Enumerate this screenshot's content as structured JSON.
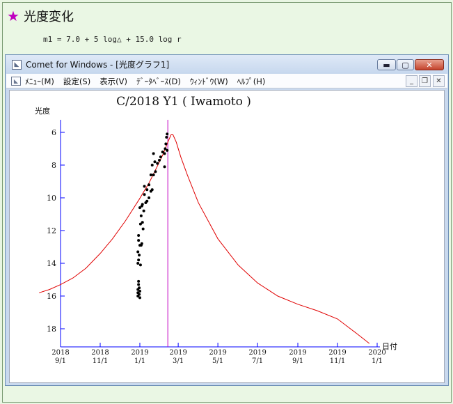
{
  "page": {
    "heading": "光度変化",
    "formula": "m1 = 7.0 + 5 log△ + 15.0 log r"
  },
  "window": {
    "title": "Comet for Windows - [光度グラフ1]",
    "menu": [
      "ﾒﾆｭｰ(M)",
      "設定(S)",
      "表示(V)",
      "ﾃﾞｰﾀﾍﾞｰｽ(D)",
      "ｳｨﾝﾄﾞｳ(W)",
      "ﾍﾙﾌﾟ(H)"
    ]
  },
  "colors": {
    "star": "#c000c0",
    "axis": "#0000ff",
    "curve": "#e00000",
    "marker": "#c000c0",
    "points": "#000000"
  },
  "icons": [
    "star-icon",
    "app-icon",
    "menu-doc-icon",
    "minimize-icon",
    "maximize-icon",
    "close-icon"
  ],
  "chart_data": {
    "type": "scatter",
    "title": "C/2018 Y1 ( Iwamoto )",
    "ylabel": "光度",
    "xlabel": "日付",
    "y_inverted": true,
    "ylim": [
      5.2,
      19
    ],
    "yticks": [
      6,
      8,
      10,
      12,
      14,
      16,
      18
    ],
    "x_ticks": [
      {
        "date": "2018-09-01",
        "top": "2018",
        "bottom": "9/1"
      },
      {
        "date": "2018-11-01",
        "top": "2018",
        "bottom": "11/1"
      },
      {
        "date": "2019-01-01",
        "top": "2019",
        "bottom": "1/1"
      },
      {
        "date": "2019-03-01",
        "top": "2019",
        "bottom": "3/1"
      },
      {
        "date": "2019-05-01",
        "top": "2019",
        "bottom": "5/1"
      },
      {
        "date": "2019-07-01",
        "top": "2019",
        "bottom": "7/1"
      },
      {
        "date": "2019-09-01",
        "top": "2019",
        "bottom": "9/1"
      },
      {
        "date": "2019-11-01",
        "top": "2019",
        "bottom": "11/1"
      },
      {
        "date": "2020-01-01",
        "top": "2020",
        "bottom": "1/1"
      }
    ],
    "marker_date": "2019-02-13",
    "series": [
      {
        "kind": "curve",
        "points": [
          [
            "2018-07-30",
            15.8
          ],
          [
            "2018-08-15",
            15.6
          ],
          [
            "2018-09-01",
            15.3
          ],
          [
            "2018-09-20",
            14.9
          ],
          [
            "2018-10-10",
            14.3
          ],
          [
            "2018-11-01",
            13.4
          ],
          [
            "2018-11-20",
            12.5
          ],
          [
            "2018-12-10",
            11.4
          ],
          [
            "2018-12-31",
            10.1
          ],
          [
            "2019-01-15",
            9.1
          ],
          [
            "2019-01-25",
            8.3
          ],
          [
            "2019-02-05",
            7.4
          ],
          [
            "2019-02-13",
            6.6
          ],
          [
            "2019-02-18",
            6.15
          ],
          [
            "2019-02-21",
            6.15
          ],
          [
            "2019-02-26",
            6.6
          ],
          [
            "2019-03-05",
            7.5
          ],
          [
            "2019-03-15",
            8.6
          ],
          [
            "2019-04-01",
            10.3
          ],
          [
            "2019-05-01",
            12.5
          ],
          [
            "2019-06-01",
            14.1
          ],
          [
            "2019-07-01",
            15.2
          ],
          [
            "2019-08-01",
            16.0
          ],
          [
            "2019-09-01",
            16.5
          ],
          [
            "2019-10-01",
            16.9
          ],
          [
            "2019-11-01",
            17.4
          ],
          [
            "2019-12-01",
            18.3
          ],
          [
            "2019-12-20",
            18.9
          ]
        ]
      },
      {
        "kind": "observations",
        "points": [
          [
            "2018-12-29",
            16.0
          ],
          [
            "2018-12-29",
            15.8
          ],
          [
            "2018-12-29",
            15.6
          ],
          [
            "2018-12-30",
            15.3
          ],
          [
            "2018-12-30",
            15.1
          ],
          [
            "2018-12-31",
            15.9
          ],
          [
            "2018-12-31",
            15.5
          ],
          [
            "2019-01-01",
            16.1
          ],
          [
            "2019-01-01",
            15.7
          ],
          [
            "2018-12-29",
            14.0
          ],
          [
            "2018-12-30",
            13.8
          ],
          [
            "2018-12-31",
            13.5
          ],
          [
            "2019-01-02",
            14.1
          ],
          [
            "2018-12-29",
            13.3
          ],
          [
            "2018-12-30",
            12.6
          ],
          [
            "2018-12-30",
            12.3
          ],
          [
            "2019-01-01",
            12.9
          ],
          [
            "2019-01-02",
            11.6
          ],
          [
            "2019-01-03",
            12.9
          ],
          [
            "2019-01-04",
            12.8
          ],
          [
            "2019-01-03",
            11.1
          ],
          [
            "2019-01-05",
            11.5
          ],
          [
            "2019-01-06",
            11.9
          ],
          [
            "2019-01-01",
            10.6
          ],
          [
            "2019-01-04",
            10.5
          ],
          [
            "2019-01-07",
            10.8
          ],
          [
            "2019-01-05",
            10.4
          ],
          [
            "2019-01-08",
            9.8
          ],
          [
            "2019-01-10",
            10.3
          ],
          [
            "2019-01-12",
            10.2
          ],
          [
            "2019-01-15",
            10.0
          ],
          [
            "2019-01-08",
            9.3
          ],
          [
            "2019-01-12",
            9.5
          ],
          [
            "2019-01-15",
            9.2
          ],
          [
            "2019-01-18",
            9.6
          ],
          [
            "2019-01-20",
            9.5
          ],
          [
            "2019-01-18",
            8.6
          ],
          [
            "2019-01-22",
            8.6
          ],
          [
            "2019-01-25",
            8.4
          ],
          [
            "2019-01-20",
            8.0
          ],
          [
            "2019-01-24",
            7.8
          ],
          [
            "2019-01-28",
            7.9
          ],
          [
            "2019-01-31",
            7.7
          ],
          [
            "2019-02-02",
            7.5
          ],
          [
            "2019-01-22",
            7.3
          ],
          [
            "2019-02-05",
            7.2
          ],
          [
            "2019-02-08",
            7.3
          ],
          [
            "2019-02-09",
            7.0
          ],
          [
            "2019-02-11",
            6.3
          ],
          [
            "2019-02-12",
            6.1
          ],
          [
            "2019-02-10",
            6.7
          ],
          [
            "2019-02-12",
            7.1
          ],
          [
            "2019-02-08",
            8.1
          ]
        ]
      }
    ]
  }
}
